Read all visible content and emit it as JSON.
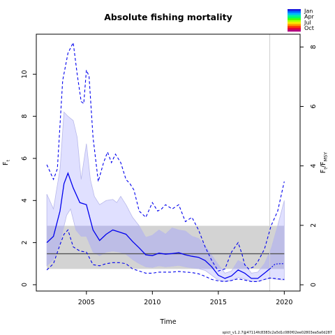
{
  "chart_data": {
    "type": "line",
    "title": "Absolute fishing mortality",
    "xlabel": "Time",
    "ylabel_left": "F",
    "ylabel_left_sub": "t",
    "ylabel_right": "F",
    "ylabel_right_sub1": "t",
    "ylabel_right_sep": "/",
    "ylabel_right_sub2": "MSY",
    "xlim": [
      2001.2,
      2021.2
    ],
    "ylim_left": [
      -0.3,
      11.9
    ],
    "ylim_right": [
      -0.21,
      8.43
    ],
    "x_ticks": [
      2005,
      2010,
      2015,
      2020
    ],
    "y_ticks_left": [
      0,
      2,
      4,
      6,
      8,
      10
    ],
    "y_ticks_right": [
      0,
      2,
      4,
      6,
      8
    ],
    "last_data_year": 2018.9,
    "reference": {
      "name": "FMSY",
      "value": 1.47,
      "band": [
        0.75,
        2.8
      ],
      "color": "#555555",
      "band_color": "#d3d3d3"
    },
    "series": [
      {
        "role": "estimate",
        "x": [
          2002.0,
          2002.5,
          2003.0,
          2003.3,
          2003.6,
          2004.0,
          2004.5,
          2005.0,
          2005.5,
          2006.0,
          2006.5,
          2007.0,
          2007.5,
          2008.0,
          2008.5,
          2009.0,
          2009.5,
          2010.0,
          2010.5,
          2011.0,
          2011.5,
          2012.0,
          2012.5,
          2013.0,
          2013.5,
          2014.0,
          2014.5,
          2015.0,
          2015.5,
          2016.0,
          2016.5,
          2017.0,
          2017.5,
          2018.0,
          2018.5,
          2018.9
        ],
        "y": [
          2.0,
          2.3,
          3.5,
          4.8,
          5.3,
          4.6,
          3.9,
          3.8,
          2.6,
          2.1,
          2.4,
          2.6,
          2.5,
          2.4,
          2.05,
          1.75,
          1.42,
          1.38,
          1.5,
          1.45,
          1.48,
          1.52,
          1.42,
          1.35,
          1.3,
          1.15,
          0.85,
          0.45,
          0.3,
          0.42,
          0.7,
          0.55,
          0.3,
          0.3,
          0.55,
          0.75
        ]
      },
      {
        "role": "estimate-projection",
        "x": [
          2018.9,
          2019.3,
          2019.7,
          2020.0
        ],
        "y": [
          0.75,
          0.98,
          1.0,
          1.0
        ]
      },
      {
        "role": "ci-lower",
        "x": [
          2002.0,
          2002.5,
          2003.0,
          2003.5,
          2003.8,
          2004.2,
          2004.6,
          2005.0,
          2005.5,
          2006.0,
          2006.5,
          2007.0,
          2007.5,
          2008.0,
          2008.5,
          2009.0,
          2009.5,
          2010.0,
          2010.5,
          2011.0,
          2011.5,
          2012.0,
          2012.5,
          2013.0,
          2013.5,
          2014.0,
          2014.5,
          2015.0,
          2015.5,
          2016.0,
          2016.5,
          2017.0,
          2017.5,
          2018.0,
          2018.5,
          2019.0,
          2019.5,
          2020.0
        ],
        "y": [
          0.9,
          1.2,
          2.0,
          3.3,
          3.6,
          2.6,
          2.3,
          2.3,
          1.55,
          1.38,
          1.55,
          1.6,
          1.55,
          1.45,
          1.2,
          1.0,
          0.85,
          0.82,
          0.9,
          0.85,
          0.88,
          0.92,
          0.85,
          0.8,
          0.76,
          0.68,
          0.45,
          0.22,
          0.15,
          0.2,
          0.35,
          0.27,
          0.15,
          0.15,
          0.25,
          0.3,
          0.25,
          0.22
        ]
      },
      {
        "role": "ci-upper",
        "x": [
          2002.0,
          2002.5,
          2003.0,
          2003.3,
          2003.6,
          2004.0,
          2004.3,
          2004.6,
          2005.0,
          2005.3,
          2005.6,
          2006.0,
          2006.5,
          2007.0,
          2007.3,
          2007.6,
          2008.0,
          2008.5,
          2009.0,
          2009.5,
          2010.0,
          2010.5,
          2011.0,
          2011.5,
          2012.0,
          2012.5,
          2013.0,
          2013.5,
          2014.0,
          2014.5,
          2015.0,
          2015.5,
          2016.0,
          2016.5,
          2017.0,
          2017.5,
          2018.0,
          2018.5,
          2019.0,
          2019.5,
          2020.0
        ],
        "y": [
          4.3,
          3.6,
          5.5,
          8.2,
          8.0,
          7.8,
          7.0,
          5.0,
          6.7,
          5.0,
          4.2,
          3.8,
          4.0,
          4.05,
          3.9,
          4.2,
          3.8,
          3.2,
          2.8,
          2.25,
          2.35,
          2.6,
          2.4,
          2.7,
          2.6,
          2.55,
          2.3,
          2.2,
          1.85,
          1.4,
          0.95,
          0.55,
          0.65,
          1.15,
          1.0,
          0.55,
          0.6,
          1.0,
          1.7,
          2.8,
          4.0
        ]
      },
      {
        "role": "upper-dashed",
        "x": [
          2002.0,
          2002.5,
          2002.8,
          2003.2,
          2003.6,
          2004.0,
          2004.3,
          2004.6,
          2004.8,
          2005.0,
          2005.2,
          2005.5,
          2005.9,
          2006.3,
          2006.6,
          2006.9,
          2007.2,
          2007.6,
          2008.0,
          2008.3,
          2008.6,
          2009.0,
          2009.5,
          2010.0,
          2010.4,
          2010.7,
          2011.0,
          2011.5,
          2012.0,
          2012.5,
          2013.0,
          2013.5,
          2014.0,
          2014.5,
          2015.0,
          2015.5,
          2016.0,
          2016.5,
          2016.8,
          2017.0,
          2017.3,
          2017.7,
          2018.0,
          2018.5,
          2019.0,
          2019.5,
          2020.0
        ],
        "y": [
          5.7,
          5.0,
          5.5,
          9.7,
          11.0,
          11.5,
          10.0,
          8.7,
          8.6,
          10.2,
          9.9,
          7.0,
          4.9,
          5.8,
          6.3,
          5.8,
          6.2,
          5.8,
          5.0,
          4.8,
          4.5,
          3.5,
          3.2,
          3.9,
          3.5,
          3.6,
          3.8,
          3.6,
          3.8,
          3.0,
          3.2,
          2.6,
          1.8,
          1.15,
          0.65,
          0.75,
          1.55,
          2.0,
          1.45,
          0.95,
          0.75,
          0.85,
          1.1,
          1.7,
          2.8,
          3.5,
          4.9
        ]
      },
      {
        "role": "lower-dashed",
        "x": [
          2002.0,
          2002.5,
          2003.0,
          2003.3,
          2003.6,
          2004.0,
          2004.5,
          2005.0,
          2005.5,
          2006.0,
          2006.5,
          2007.0,
          2007.5,
          2008.0,
          2008.5,
          2009.0,
          2009.5,
          2010.0,
          2010.5,
          2011.0,
          2011.5,
          2012.0,
          2012.5,
          2013.0,
          2013.5,
          2014.0,
          2014.5,
          2015.0,
          2015.5,
          2016.0,
          2016.5,
          2017.0,
          2017.5,
          2018.0,
          2018.5,
          2018.9,
          2019.5,
          2020.0
        ],
        "y": [
          0.7,
          1.0,
          1.9,
          2.4,
          2.6,
          1.8,
          1.6,
          1.55,
          0.95,
          0.9,
          1.0,
          1.05,
          1.05,
          1.0,
          0.75,
          0.65,
          0.55,
          0.55,
          0.6,
          0.6,
          0.6,
          0.63,
          0.6,
          0.58,
          0.52,
          0.4,
          0.25,
          0.18,
          0.15,
          0.2,
          0.28,
          0.22,
          0.15,
          0.15,
          0.25,
          0.32,
          0.28,
          0.25
        ]
      }
    ],
    "legend": {
      "labels": [
        "Jan",
        "Apr",
        "Jul",
        "Oct"
      ],
      "colors": [
        "#1a1ae0",
        "#0066ff",
        "#00b3ff",
        "#00e6b3",
        "#00ff66",
        "#4dff00",
        "#b3ff00",
        "#ffe600",
        "#ff9900",
        "#ff4000",
        "#e60033",
        "#b30080"
      ]
    },
    "colors": {
      "estimate": "#0000ee",
      "ci_fill": "#e0e0ff",
      "ci_fill_stroke": "#b8b8ea",
      "overlap_fill": "#bdbde6",
      "current_year_line": "#cfcfcf"
    }
  },
  "footnote": "spict_v1.2.7@47114fc8383c2a5d1c080f02ee02803ea5a0d287"
}
